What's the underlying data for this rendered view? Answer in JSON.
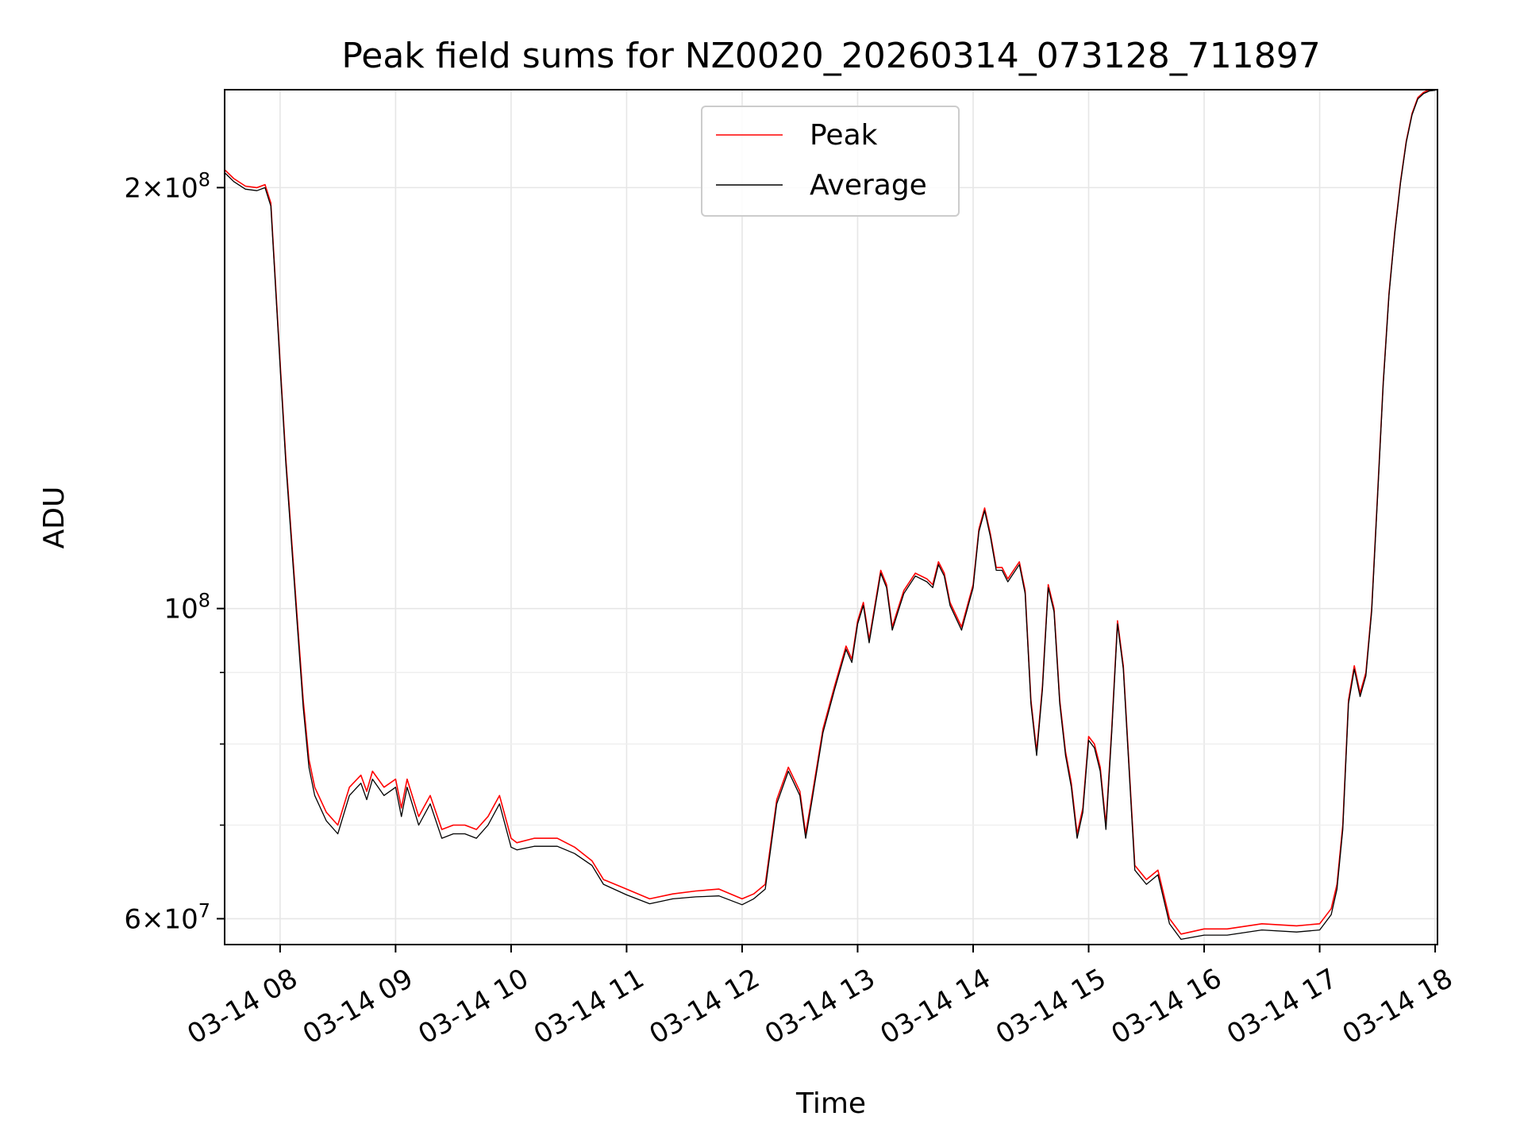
{
  "chart_data": {
    "type": "line",
    "title": "Peak field sums for NZ0020_20260314_073128_711897",
    "xlabel": "Time",
    "ylabel": "ADU",
    "yscale": "log",
    "ylim": [
      57500000,
      235000000
    ],
    "xlim": [
      7.52,
      18.02
    ],
    "grid": true,
    "legend_position": "top-center",
    "x_ticks": [
      {
        "value": 8,
        "label": "03-14 08"
      },
      {
        "value": 9,
        "label": "03-14 09"
      },
      {
        "value": 10,
        "label": "03-14 10"
      },
      {
        "value": 11,
        "label": "03-14 11"
      },
      {
        "value": 12,
        "label": "03-14 12"
      },
      {
        "value": 13,
        "label": "03-14 13"
      },
      {
        "value": 14,
        "label": "03-14 14"
      },
      {
        "value": 15,
        "label": "03-14 15"
      },
      {
        "value": 16,
        "label": "03-14 16"
      },
      {
        "value": 17,
        "label": "03-14 17"
      },
      {
        "value": 18,
        "label": "03-14 18"
      }
    ],
    "y_ticks_major": [
      {
        "value": 60000000,
        "mantissa": "6",
        "exponent": "7",
        "times": "×",
        "base": "10"
      },
      {
        "value": 100000000,
        "mantissa": "",
        "exponent": "8",
        "times": "",
        "base": "10"
      },
      {
        "value": 200000000,
        "mantissa": "2",
        "exponent": "8",
        "times": "×",
        "base": "10"
      }
    ],
    "y_ticks_minor": [
      70000000,
      80000000,
      90000000
    ],
    "series": [
      {
        "name": "Peak",
        "color": "#ff0000",
        "x": [
          7.52,
          7.6,
          7.7,
          7.8,
          7.87,
          7.92,
          8.0,
          8.05,
          8.1,
          8.15,
          8.2,
          8.25,
          8.3,
          8.4,
          8.5,
          8.6,
          8.7,
          8.75,
          8.8,
          8.9,
          9.0,
          9.05,
          9.1,
          9.2,
          9.3,
          9.4,
          9.5,
          9.6,
          9.7,
          9.8,
          9.9,
          10.0,
          10.05,
          10.2,
          10.4,
          10.55,
          10.7,
          10.8,
          11.0,
          11.2,
          11.4,
          11.6,
          11.8,
          12.0,
          12.1,
          12.2,
          12.3,
          12.4,
          12.45,
          12.5,
          12.55,
          12.6,
          12.7,
          12.8,
          12.9,
          12.95,
          13.0,
          13.05,
          13.1,
          13.2,
          13.25,
          13.3,
          13.35,
          13.4,
          13.5,
          13.6,
          13.65,
          13.7,
          13.75,
          13.8,
          13.9,
          14.0,
          14.05,
          14.1,
          14.15,
          14.2,
          14.25,
          14.3,
          14.4,
          14.45,
          14.5,
          14.55,
          14.6,
          14.65,
          14.7,
          14.75,
          14.8,
          14.85,
          14.9,
          14.95,
          15.0,
          15.05,
          15.1,
          15.15,
          15.2,
          15.25,
          15.3,
          15.4,
          15.5,
          15.6,
          15.7,
          15.8,
          16.0,
          16.2,
          16.5,
          16.8,
          17.0,
          17.1,
          17.15,
          17.2,
          17.25,
          17.3,
          17.35,
          17.4,
          17.45,
          17.5,
          17.55,
          17.6,
          17.65,
          17.7,
          17.75,
          17.8,
          17.85,
          17.9,
          17.95,
          18.0
        ],
        "values": [
          206000000,
          203000000,
          200500000,
          200000000,
          201000000,
          195000000,
          150000000,
          128000000,
          112000000,
          98000000,
          86000000,
          78000000,
          74500000,
          71500000,
          70000000,
          74500000,
          76000000,
          74000000,
          76500000,
          74500000,
          75500000,
          72000000,
          75500000,
          71000000,
          73500000,
          69500000,
          70000000,
          70000000,
          69500000,
          71000000,
          73500000,
          68500000,
          68000000,
          68500000,
          68500000,
          67500000,
          66000000,
          64000000,
          63000000,
          62000000,
          62500000,
          62800000,
          63000000,
          62000000,
          62500000,
          63500000,
          73000000,
          77000000,
          75500000,
          74000000,
          69000000,
          73000000,
          82000000,
          88000000,
          94000000,
          92000000,
          98000000,
          101000000,
          95000000,
          106500000,
          104000000,
          97000000,
          100000000,
          103000000,
          106000000,
          105000000,
          104000000,
          108000000,
          106000000,
          101000000,
          97000000,
          104000000,
          114000000,
          118000000,
          113000000,
          107000000,
          107000000,
          105000000,
          108000000,
          103000000,
          86000000,
          79000000,
          88000000,
          104000000,
          100000000,
          86000000,
          79000000,
          75000000,
          69000000,
          72000000,
          81000000,
          80000000,
          77000000,
          70000000,
          82000000,
          98000000,
          91000000,
          65500000,
          64000000,
          65000000,
          60000000,
          58500000,
          59000000,
          59000000,
          59500000,
          59300000,
          59500000,
          61000000,
          63500000,
          70000000,
          86000000,
          91000000,
          87000000,
          90000000,
          100000000,
          120000000,
          145000000,
          168000000,
          186000000,
          202000000,
          216000000,
          226000000,
          232000000,
          234000000,
          235000000,
          235000000
        ]
      },
      {
        "name": "Average",
        "color": "#000000",
        "x": [
          7.52,
          7.6,
          7.7,
          7.8,
          7.87,
          7.92,
          8.0,
          8.05,
          8.1,
          8.15,
          8.2,
          8.25,
          8.3,
          8.4,
          8.5,
          8.6,
          8.7,
          8.75,
          8.8,
          8.9,
          9.0,
          9.05,
          9.1,
          9.2,
          9.3,
          9.4,
          9.5,
          9.6,
          9.7,
          9.8,
          9.9,
          10.0,
          10.05,
          10.2,
          10.4,
          10.55,
          10.7,
          10.8,
          11.0,
          11.2,
          11.4,
          11.6,
          11.8,
          12.0,
          12.1,
          12.2,
          12.3,
          12.4,
          12.45,
          12.5,
          12.55,
          12.6,
          12.7,
          12.8,
          12.9,
          12.95,
          13.0,
          13.05,
          13.1,
          13.2,
          13.25,
          13.3,
          13.35,
          13.4,
          13.5,
          13.6,
          13.65,
          13.7,
          13.75,
          13.8,
          13.9,
          14.0,
          14.05,
          14.1,
          14.15,
          14.2,
          14.25,
          14.3,
          14.4,
          14.45,
          14.5,
          14.55,
          14.6,
          14.65,
          14.7,
          14.75,
          14.8,
          14.85,
          14.9,
          14.95,
          15.0,
          15.05,
          15.1,
          15.15,
          15.2,
          15.25,
          15.3,
          15.4,
          15.5,
          15.6,
          15.7,
          15.8,
          16.0,
          16.2,
          16.5,
          16.8,
          17.0,
          17.1,
          17.15,
          17.2,
          17.25,
          17.3,
          17.35,
          17.4,
          17.45,
          17.5,
          17.55,
          17.6,
          17.65,
          17.7,
          17.75,
          17.8,
          17.85,
          17.9,
          17.95,
          18.0
        ],
        "values": [
          205000000,
          202000000,
          199500000,
          199000000,
          200000000,
          194000000,
          149000000,
          127000000,
          111000000,
          97000000,
          85000000,
          77000000,
          73500000,
          70500000,
          69000000,
          73500000,
          75000000,
          73000000,
          75500000,
          73500000,
          74500000,
          71000000,
          74500000,
          70000000,
          72500000,
          68500000,
          69000000,
          69000000,
          68500000,
          70000000,
          72500000,
          67500000,
          67200000,
          67600000,
          67600000,
          66800000,
          65500000,
          63500000,
          62400000,
          61500000,
          62000000,
          62200000,
          62300000,
          61400000,
          62000000,
          63000000,
          72500000,
          76500000,
          75000000,
          73500000,
          68500000,
          72500000,
          81500000,
          87500000,
          93500000,
          91500000,
          97500000,
          100500000,
          94500000,
          106000000,
          103500000,
          96500000,
          99500000,
          102500000,
          105500000,
          104500000,
          103500000,
          107500000,
          105500000,
          100500000,
          96500000,
          103500000,
          113500000,
          117500000,
          112500000,
          106500000,
          106500000,
          104500000,
          107500000,
          102500000,
          85500000,
          78500000,
          87500000,
          103500000,
          99500000,
          85500000,
          78500000,
          74500000,
          68500000,
          71500000,
          80500000,
          79500000,
          76500000,
          69500000,
          81500000,
          97500000,
          90500000,
          65000000,
          63500000,
          64500000,
          59500000,
          58000000,
          58400000,
          58400000,
          58900000,
          58700000,
          58900000,
          60400000,
          63000000,
          69500000,
          85500000,
          90500000,
          86500000,
          89500000,
          99500000,
          119500000,
          144500000,
          167500000,
          185500000,
          201500000,
          215500000,
          225500000,
          231500000,
          233500000,
          234500000,
          234800000
        ]
      }
    ],
    "annotations": []
  }
}
